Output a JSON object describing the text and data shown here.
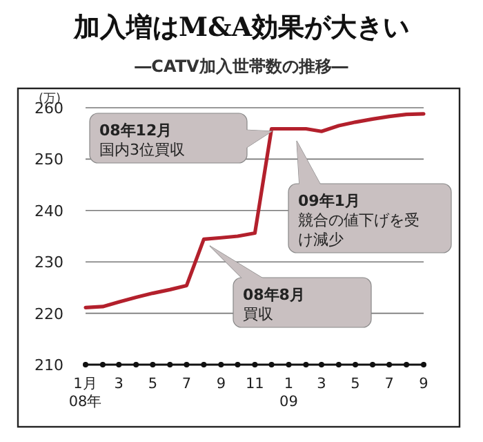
{
  "chart_data": {
    "type": "line",
    "title": "加入増はM&A効果が大きい",
    "subtitle": "―CATV加入世帯数の推移―",
    "ylabel": "(万)",
    "x": [
      "2008-01",
      "2008-02",
      "2008-03",
      "2008-04",
      "2008-05",
      "2008-06",
      "2008-07",
      "2008-08",
      "2008-09",
      "2008-10",
      "2008-11",
      "2008-12",
      "2009-01",
      "2009-02",
      "2009-03",
      "2009-04",
      "2009-05",
      "2009-06",
      "2009-07",
      "2009-08",
      "2009-09"
    ],
    "series": [
      {
        "color": "#b3202c",
        "values": [
          221.1,
          221.3,
          222.2,
          223.1,
          223.9,
          224.6,
          225.4,
          234.4,
          234.7,
          235.0,
          235.6,
          255.9,
          255.9,
          255.9,
          255.4,
          256.5,
          257.2,
          257.8,
          258.3,
          258.7,
          258.8
        ]
      }
    ],
    "xlim": [
      "2008-01",
      "2009-09"
    ],
    "xticks": [
      {
        "value": "2008-01",
        "label": "1月\n08年"
      },
      {
        "value": "2008-02",
        "label": null
      },
      {
        "value": "2008-03",
        "label": "3"
      },
      {
        "value": "2008-04",
        "label": null
      },
      {
        "value": "2008-05",
        "label": "5"
      },
      {
        "value": "2008-06",
        "label": null
      },
      {
        "value": "2008-07",
        "label": "7"
      },
      {
        "value": "2008-08",
        "label": null
      },
      {
        "value": "2008-09",
        "label": "9"
      },
      {
        "value": "2008-10",
        "label": null
      },
      {
        "value": "2008-11",
        "label": "11"
      },
      {
        "value": "2008-12",
        "label": null
      },
      {
        "value": "2009-01",
        "label": "1\n09"
      },
      {
        "value": "2009-02",
        "label": null
      },
      {
        "value": "2009-03",
        "label": "3"
      },
      {
        "value": "2009-04",
        "label": null
      },
      {
        "value": "2009-05",
        "label": "5"
      },
      {
        "value": "2009-06",
        "label": null
      },
      {
        "value": "2009-07",
        "label": "7"
      },
      {
        "value": "2009-08",
        "label": null
      },
      {
        "value": "2009-09",
        "label": "9"
      }
    ],
    "ylim": [
      210,
      260
    ],
    "yticks": [
      210,
      220,
      230,
      240,
      250,
      260
    ],
    "grid": "y",
    "marker": "none",
    "line_style": "solid",
    "annotations": [
      "08年12月国内3位買収",
      "09年1月競合の値下げを受け減少",
      "08年8月買収"
    ]
  }
}
